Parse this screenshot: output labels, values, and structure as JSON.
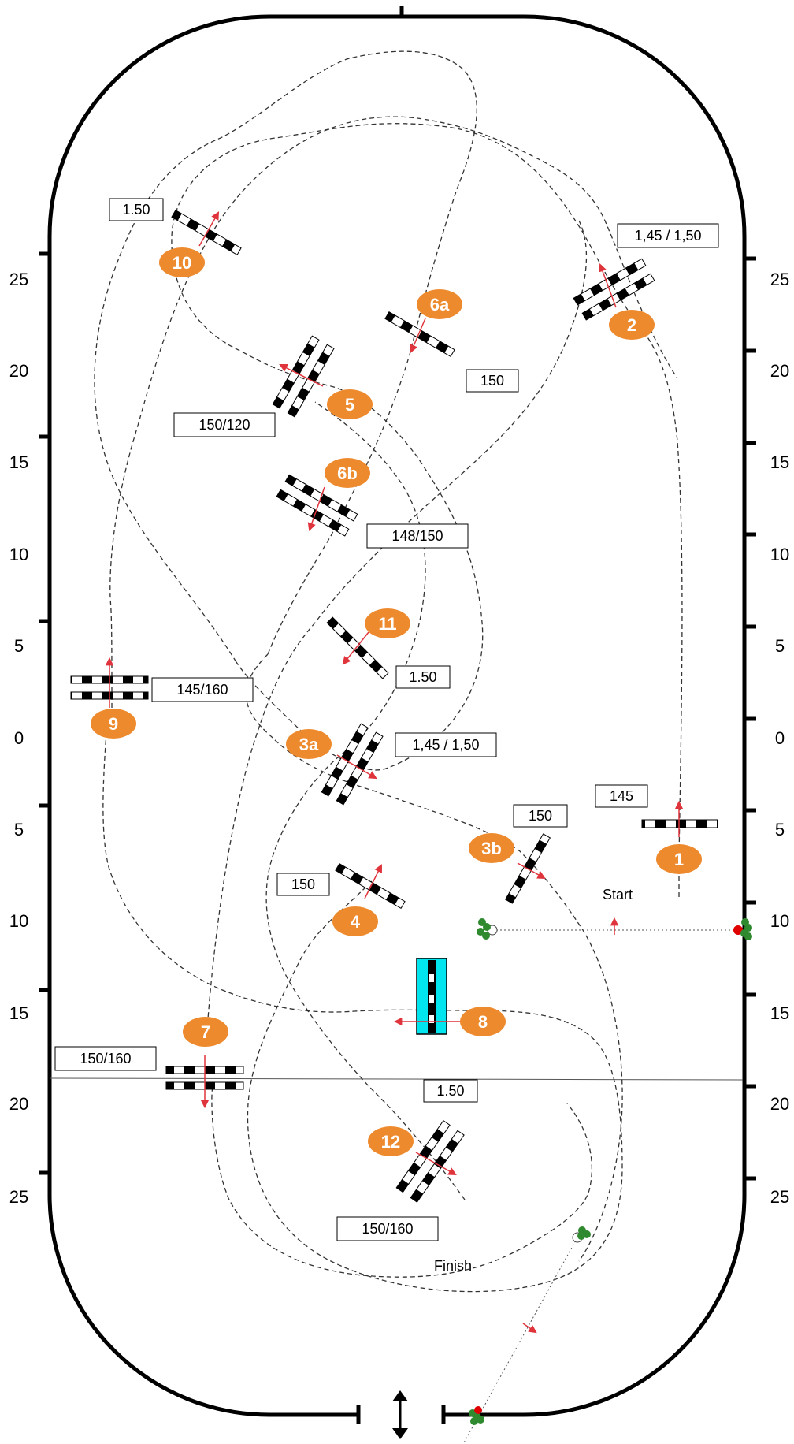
{
  "arena": {
    "left_scale": [
      "25",
      "20",
      "15",
      "10",
      "5",
      "0",
      "5",
      "10",
      "15",
      "20",
      "25"
    ],
    "right_scale": [
      "25",
      "20",
      "15",
      "10",
      "5",
      "0",
      "5",
      "10",
      "15",
      "20",
      "25"
    ]
  },
  "labels": {
    "start": "Start",
    "finish": "Finish"
  },
  "fences": [
    {
      "number": "1",
      "height": "145"
    },
    {
      "number": "2",
      "height": "1,45 / 1,50"
    },
    {
      "number": "3a",
      "height": "1,45 / 1,50"
    },
    {
      "number": "3b",
      "height": "150"
    },
    {
      "number": "4",
      "height": "150"
    },
    {
      "number": "5",
      "height": "150/120"
    },
    {
      "number": "6a",
      "height": "150"
    },
    {
      "number": "6b",
      "height": "148/150"
    },
    {
      "number": "7",
      "height": "150/160"
    },
    {
      "number": "8",
      "height": "1.50"
    },
    {
      "number": "9",
      "height": "145/160"
    },
    {
      "number": "10",
      "height": "1.50"
    },
    {
      "number": "11",
      "height": "1.50"
    },
    {
      "number": "12",
      "height": "150/160"
    }
  ],
  "colors": {
    "badge": "#ee8a2e",
    "direction_arrow": "#e0343c",
    "water_jump": "#00e5ee",
    "shrub": "#2f8a2f",
    "flag": "#e00000",
    "pole_light": "#ffffff",
    "pole_dark": "#000000"
  }
}
